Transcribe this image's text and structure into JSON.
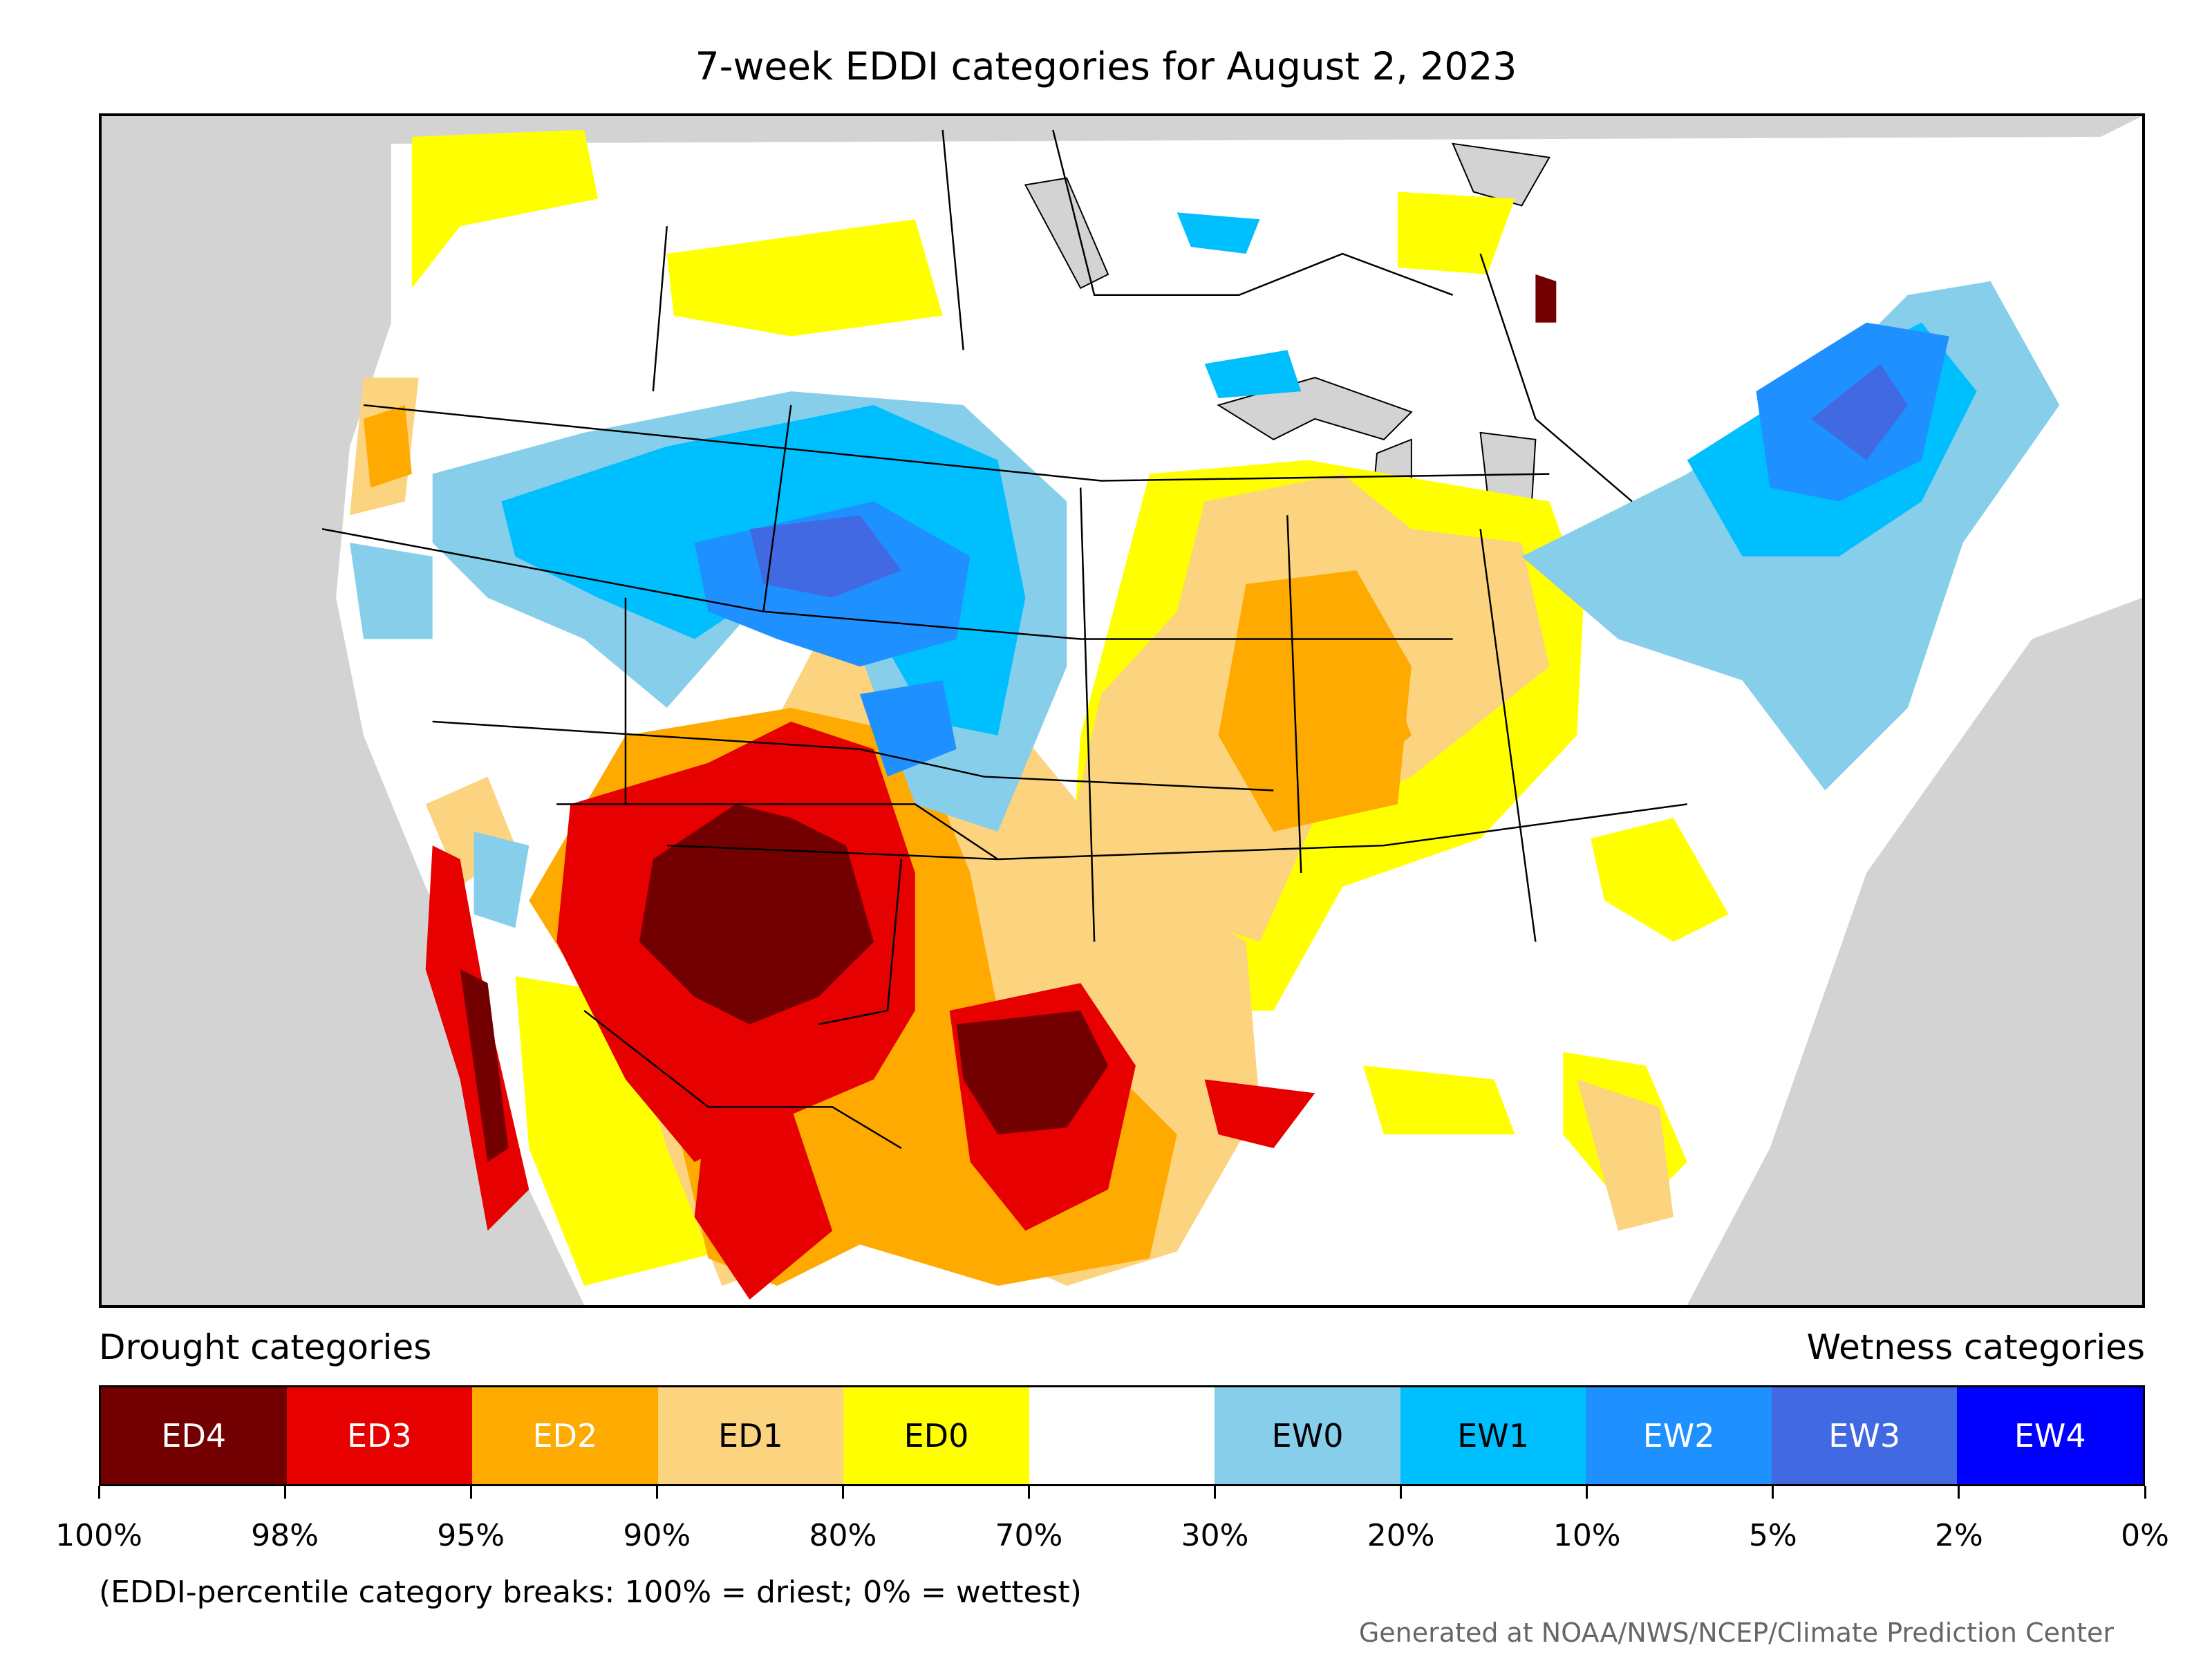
{
  "title": "7-week EDDI categories for August 2, 2023",
  "legend": {
    "drought_heading": "Drought categories",
    "wetness_heading": "Wetness categories",
    "categories": [
      {
        "label": "ED4",
        "color": "#730000",
        "text_color": "#ffffff"
      },
      {
        "label": "ED3",
        "color": "#e60000",
        "text_color": "#ffffff"
      },
      {
        "label": "ED2",
        "color": "#ffaa00",
        "text_color": "#ffffff"
      },
      {
        "label": "ED1",
        "color": "#fcd37f",
        "text_color": "#000000"
      },
      {
        "label": "ED0",
        "color": "#ffff00",
        "text_color": "#000000"
      },
      {
        "label": "",
        "color": "#ffffff",
        "text_color": "#000000"
      },
      {
        "label": "EW0",
        "color": "#87ceeb",
        "text_color": "#000000"
      },
      {
        "label": "EW1",
        "color": "#00bfff",
        "text_color": "#000000"
      },
      {
        "label": "EW2",
        "color": "#1e90ff",
        "text_color": "#ffffff"
      },
      {
        "label": "EW3",
        "color": "#4169e1",
        "text_color": "#ffffff"
      },
      {
        "label": "EW4",
        "color": "#0000ff",
        "text_color": "#ffffff"
      }
    ],
    "breaks": [
      "100%",
      "98%",
      "95%",
      "90%",
      "80%",
      "70%",
      "30%",
      "20%",
      "10%",
      "5%",
      "2%",
      "0%"
    ]
  },
  "note": "(EDDI-percentile category breaks: 100% = driest; 0% = wettest)",
  "credit": "Generated at NOAA/NWS/NCEP/Climate Prediction Center",
  "map": {
    "background_color": "#d3d3d3",
    "region": "Contiguous United States, southern Canada and northern Mexico"
  }
}
